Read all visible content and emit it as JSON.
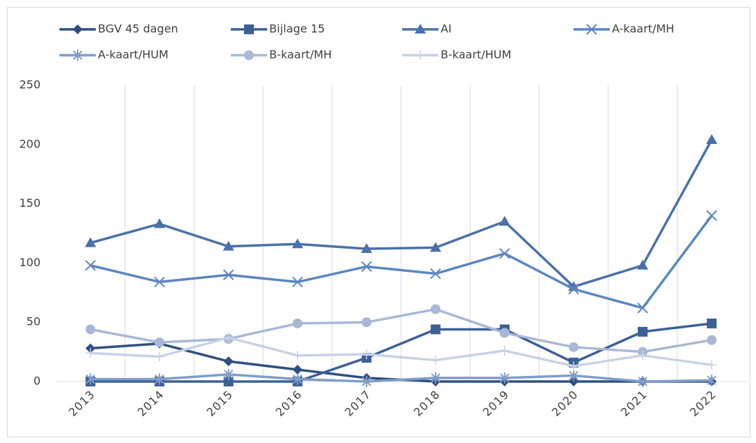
{
  "chart_data": {
    "type": "line",
    "categories": [
      "2013",
      "2014",
      "2015",
      "2016",
      "2017",
      "2018",
      "2019",
      "2020",
      "2021",
      "2022"
    ],
    "series": [
      {
        "name": "BGV 45 dagen",
        "color": "#2f5080",
        "marker": "diamond",
        "values": [
          28,
          32,
          17,
          10,
          3,
          0,
          0,
          0,
          0,
          0
        ]
      },
      {
        "name": "Bijlage 15",
        "color": "#3b6096",
        "marker": "square",
        "values": [
          0,
          0,
          0,
          0,
          20,
          44,
          44,
          16,
          42,
          49
        ]
      },
      {
        "name": "AI",
        "color": "#4a71a8",
        "marker": "triangle",
        "values": [
          117,
          133,
          114,
          116,
          112,
          113,
          135,
          80,
          98,
          204
        ]
      },
      {
        "name": "A-kaart/MH",
        "color": "#5b86c0",
        "marker": "x",
        "values": [
          98,
          84,
          90,
          84,
          97,
          91,
          108,
          78,
          62,
          140
        ]
      },
      {
        "name": "A-kaart/HUM",
        "color": "#7f9dc8",
        "marker": "star",
        "values": [
          2,
          2,
          6,
          2,
          0,
          3,
          3,
          5,
          0,
          1
        ]
      },
      {
        "name": "B-kaart/MH",
        "color": "#a9b8d6",
        "marker": "circle",
        "values": [
          44,
          33,
          36,
          49,
          50,
          61,
          41,
          29,
          25,
          35
        ]
      },
      {
        "name": "B-kaart/HUM",
        "color": "#c8d2e5",
        "marker": "plus",
        "values": [
          24,
          21,
          37,
          22,
          23,
          18,
          26,
          13,
          22,
          14
        ]
      }
    ],
    "ylim": [
      0,
      250
    ],
    "yticks": [
      0,
      50,
      100,
      150,
      200,
      250
    ],
    "grid": "vertical"
  }
}
